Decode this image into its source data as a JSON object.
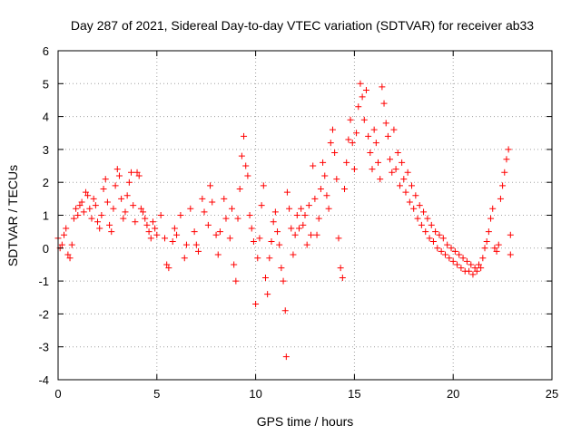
{
  "chart_data": {
    "type": "scatter",
    "title": "Day 287 of 2021, Sidereal Day-to-day VTEC variation (SDTVAR) for receiver ab33",
    "xlabel": "GPS time / hours",
    "ylabel": "SDTVAR / TECUs",
    "xlim": [
      0,
      25
    ],
    "ylim": [
      -4,
      6
    ],
    "xticks": [
      "0",
      "5",
      "10",
      "15",
      "20",
      "25"
    ],
    "yticks": [
      "-4",
      "-3",
      "-2",
      "-1",
      "0",
      "1",
      "2",
      "3",
      "4",
      "5",
      "6"
    ],
    "grid": true,
    "marker": "+",
    "color": "#ff0000",
    "series": [
      {
        "name": "SDTVAR",
        "points": [
          [
            0.0,
            0.3
          ],
          [
            0.1,
            0.0
          ],
          [
            0.2,
            0.1
          ],
          [
            0.3,
            0.4
          ],
          [
            0.4,
            0.6
          ],
          [
            0.5,
            -0.2
          ],
          [
            0.6,
            -0.3
          ],
          [
            0.7,
            0.1
          ],
          [
            0.8,
            0.9
          ],
          [
            0.9,
            1.2
          ],
          [
            1.0,
            1.0
          ],
          [
            1.1,
            1.3
          ],
          [
            1.2,
            1.4
          ],
          [
            1.3,
            1.1
          ],
          [
            1.4,
            1.7
          ],
          [
            1.5,
            1.6
          ],
          [
            1.6,
            1.2
          ],
          [
            1.7,
            0.9
          ],
          [
            1.8,
            1.5
          ],
          [
            1.9,
            1.3
          ],
          [
            2.0,
            0.8
          ],
          [
            2.1,
            0.6
          ],
          [
            2.2,
            1.0
          ],
          [
            2.3,
            1.8
          ],
          [
            2.4,
            2.1
          ],
          [
            2.5,
            1.4
          ],
          [
            2.6,
            0.7
          ],
          [
            2.7,
            0.5
          ],
          [
            2.8,
            1.2
          ],
          [
            2.9,
            1.9
          ],
          [
            3.0,
            2.4
          ],
          [
            3.1,
            2.2
          ],
          [
            3.2,
            1.5
          ],
          [
            3.3,
            0.9
          ],
          [
            3.4,
            1.1
          ],
          [
            3.5,
            1.6
          ],
          [
            3.6,
            2.0
          ],
          [
            3.7,
            2.3
          ],
          [
            3.8,
            1.3
          ],
          [
            3.9,
            0.8
          ],
          [
            4.0,
            2.3
          ],
          [
            4.1,
            2.2
          ],
          [
            4.2,
            1.2
          ],
          [
            4.3,
            1.1
          ],
          [
            4.4,
            0.9
          ],
          [
            4.5,
            0.7
          ],
          [
            4.6,
            0.5
          ],
          [
            4.7,
            0.3
          ],
          [
            4.8,
            0.8
          ],
          [
            4.9,
            0.6
          ],
          [
            5.0,
            0.4
          ],
          [
            5.2,
            1.0
          ],
          [
            5.4,
            0.3
          ],
          [
            5.5,
            -0.5
          ],
          [
            5.6,
            -0.6
          ],
          [
            5.8,
            0.2
          ],
          [
            5.9,
            0.6
          ],
          [
            6.0,
            0.4
          ],
          [
            6.2,
            1.0
          ],
          [
            6.4,
            -0.3
          ],
          [
            6.5,
            0.1
          ],
          [
            6.7,
            1.2
          ],
          [
            6.9,
            0.5
          ],
          [
            7.0,
            0.1
          ],
          [
            7.1,
            -0.1
          ],
          [
            7.3,
            1.5
          ],
          [
            7.4,
            1.1
          ],
          [
            7.6,
            0.7
          ],
          [
            7.7,
            1.9
          ],
          [
            7.8,
            1.4
          ],
          [
            8.0,
            0.4
          ],
          [
            8.1,
            -0.2
          ],
          [
            8.2,
            0.5
          ],
          [
            8.4,
            1.5
          ],
          [
            8.5,
            0.9
          ],
          [
            8.7,
            0.3
          ],
          [
            8.8,
            1.2
          ],
          [
            8.9,
            -0.5
          ],
          [
            9.0,
            -1.0
          ],
          [
            9.1,
            0.9
          ],
          [
            9.2,
            1.8
          ],
          [
            9.3,
            2.8
          ],
          [
            9.4,
            3.4
          ],
          [
            9.5,
            2.5
          ],
          [
            9.6,
            2.2
          ],
          [
            9.7,
            1.0
          ],
          [
            9.8,
            0.6
          ],
          [
            9.9,
            0.2
          ],
          [
            10.0,
            -1.7
          ],
          [
            10.1,
            -0.3
          ],
          [
            10.2,
            0.3
          ],
          [
            10.3,
            1.3
          ],
          [
            10.4,
            1.9
          ],
          [
            10.5,
            -0.9
          ],
          [
            10.6,
            -1.4
          ],
          [
            10.7,
            -0.3
          ],
          [
            10.8,
            0.2
          ],
          [
            10.9,
            0.8
          ],
          [
            11.0,
            1.1
          ],
          [
            11.1,
            0.5
          ],
          [
            11.2,
            0.1
          ],
          [
            11.3,
            -0.6
          ],
          [
            11.4,
            -1.0
          ],
          [
            11.5,
            -1.9
          ],
          [
            11.55,
            -3.3
          ],
          [
            11.6,
            1.7
          ],
          [
            11.7,
            1.2
          ],
          [
            11.8,
            0.6
          ],
          [
            11.9,
            -0.2
          ],
          [
            12.0,
            0.4
          ],
          [
            12.1,
            1.0
          ],
          [
            12.2,
            0.6
          ],
          [
            12.3,
            1.2
          ],
          [
            12.4,
            0.7
          ],
          [
            12.5,
            1.0
          ],
          [
            12.6,
            0.1
          ],
          [
            12.7,
            1.3
          ],
          [
            12.8,
            0.4
          ],
          [
            12.9,
            2.5
          ],
          [
            13.0,
            1.5
          ],
          [
            13.1,
            0.4
          ],
          [
            13.2,
            0.9
          ],
          [
            13.3,
            1.8
          ],
          [
            13.4,
            2.6
          ],
          [
            13.5,
            2.2
          ],
          [
            13.6,
            1.6
          ],
          [
            13.7,
            1.2
          ],
          [
            13.8,
            3.2
          ],
          [
            13.9,
            3.6
          ],
          [
            14.0,
            2.9
          ],
          [
            14.1,
            2.1
          ],
          [
            14.2,
            0.3
          ],
          [
            14.3,
            -0.6
          ],
          [
            14.4,
            -0.9
          ],
          [
            14.5,
            1.8
          ],
          [
            14.6,
            2.6
          ],
          [
            14.7,
            3.3
          ],
          [
            14.8,
            3.9
          ],
          [
            14.9,
            3.2
          ],
          [
            15.0,
            2.4
          ],
          [
            15.1,
            3.5
          ],
          [
            15.2,
            4.3
          ],
          [
            15.3,
            5.0
          ],
          [
            15.4,
            4.6
          ],
          [
            15.5,
            3.9
          ],
          [
            15.6,
            4.8
          ],
          [
            15.7,
            3.4
          ],
          [
            15.8,
            2.9
          ],
          [
            15.9,
            2.4
          ],
          [
            16.0,
            3.6
          ],
          [
            16.1,
            3.2
          ],
          [
            16.2,
            2.6
          ],
          [
            16.3,
            2.1
          ],
          [
            16.4,
            4.9
          ],
          [
            16.5,
            4.4
          ],
          [
            16.6,
            3.8
          ],
          [
            16.7,
            3.4
          ],
          [
            16.8,
            2.7
          ],
          [
            16.9,
            2.3
          ],
          [
            17.0,
            3.6
          ],
          [
            17.1,
            2.4
          ],
          [
            17.2,
            2.9
          ],
          [
            17.3,
            1.9
          ],
          [
            17.4,
            2.6
          ],
          [
            17.5,
            2.1
          ],
          [
            17.6,
            1.7
          ],
          [
            17.7,
            2.3
          ],
          [
            17.8,
            1.4
          ],
          [
            17.9,
            1.9
          ],
          [
            18.0,
            1.2
          ],
          [
            18.1,
            1.6
          ],
          [
            18.2,
            0.9
          ],
          [
            18.3,
            1.3
          ],
          [
            18.4,
            0.7
          ],
          [
            18.5,
            1.1
          ],
          [
            18.6,
            0.5
          ],
          [
            18.7,
            0.9
          ],
          [
            18.8,
            0.3
          ],
          [
            18.9,
            0.7
          ],
          [
            19.0,
            0.2
          ],
          [
            19.1,
            0.5
          ],
          [
            19.2,
            0.0
          ],
          [
            19.3,
            0.4
          ],
          [
            19.4,
            -0.1
          ],
          [
            19.5,
            0.3
          ],
          [
            19.6,
            -0.2
          ],
          [
            19.7,
            0.1
          ],
          [
            19.8,
            -0.3
          ],
          [
            19.9,
            0.0
          ],
          [
            20.0,
            -0.4
          ],
          [
            20.1,
            -0.1
          ],
          [
            20.2,
            -0.5
          ],
          [
            20.3,
            -0.2
          ],
          [
            20.4,
            -0.6
          ],
          [
            20.5,
            -0.3
          ],
          [
            20.6,
            -0.7
          ],
          [
            20.7,
            -0.4
          ],
          [
            20.8,
            -0.7
          ],
          [
            20.9,
            -0.5
          ],
          [
            21.0,
            -0.8
          ],
          [
            21.1,
            -0.6
          ],
          [
            21.2,
            -0.7
          ],
          [
            21.3,
            -0.5
          ],
          [
            21.4,
            -0.6
          ],
          [
            21.5,
            -0.3
          ],
          [
            21.6,
            0.0
          ],
          [
            21.7,
            0.2
          ],
          [
            21.8,
            0.5
          ],
          [
            21.9,
            0.9
          ],
          [
            22.0,
            1.2
          ],
          [
            22.1,
            0.0
          ],
          [
            22.2,
            -0.1
          ],
          [
            22.3,
            0.1
          ],
          [
            22.4,
            1.5
          ],
          [
            22.5,
            1.9
          ],
          [
            22.6,
            2.3
          ],
          [
            22.7,
            2.7
          ],
          [
            22.8,
            3.0
          ],
          [
            22.9,
            0.4
          ],
          [
            22.9,
            -0.2
          ]
        ]
      }
    ]
  }
}
